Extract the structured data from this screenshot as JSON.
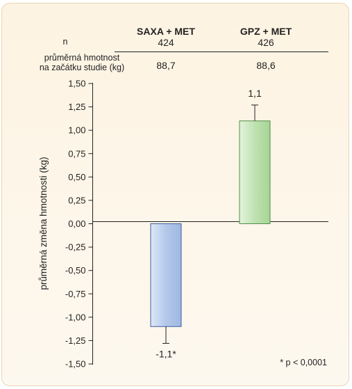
{
  "chart_data": {
    "type": "bar",
    "title": "",
    "xlabel": "",
    "ylabel": "průměrná změna hmotnosti (kg)",
    "ylim": [
      -1.5,
      1.5
    ],
    "yticks": [
      "1,50",
      "1,25",
      "1,00",
      "0,75",
      "0,50",
      "0,25",
      "0,00",
      "-0,25",
      "-0,50",
      "-0,75",
      "-1,00",
      "-1,25",
      "-1,50"
    ],
    "yticks_values": [
      1.5,
      1.25,
      1.0,
      0.75,
      0.5,
      0.25,
      0.0,
      -0.25,
      -0.5,
      -0.75,
      -1.0,
      -1.25,
      -1.5
    ],
    "grid": false,
    "categories": [
      "SAXA + MET",
      "GPZ + MET"
    ],
    "values": [
      -1.1,
      1.1
    ],
    "error": [
      0.18,
      0.17
    ],
    "value_labels": [
      "-1,1*",
      "1,1"
    ],
    "bar_colors": [
      "#b7cbea",
      "#bfe0b2"
    ],
    "bar_edge_colors": [
      "#3f5f9c",
      "#4f8f46"
    ],
    "header": {
      "n_label": "n",
      "n_values": [
        "424",
        "426"
      ],
      "weight_label_line1": "průměrná hmotnost",
      "weight_label_line2": "na začátku studie (kg)",
      "weight_values": [
        "88,7",
        "88,6"
      ]
    },
    "footnote": "* p < 0,0001"
  }
}
